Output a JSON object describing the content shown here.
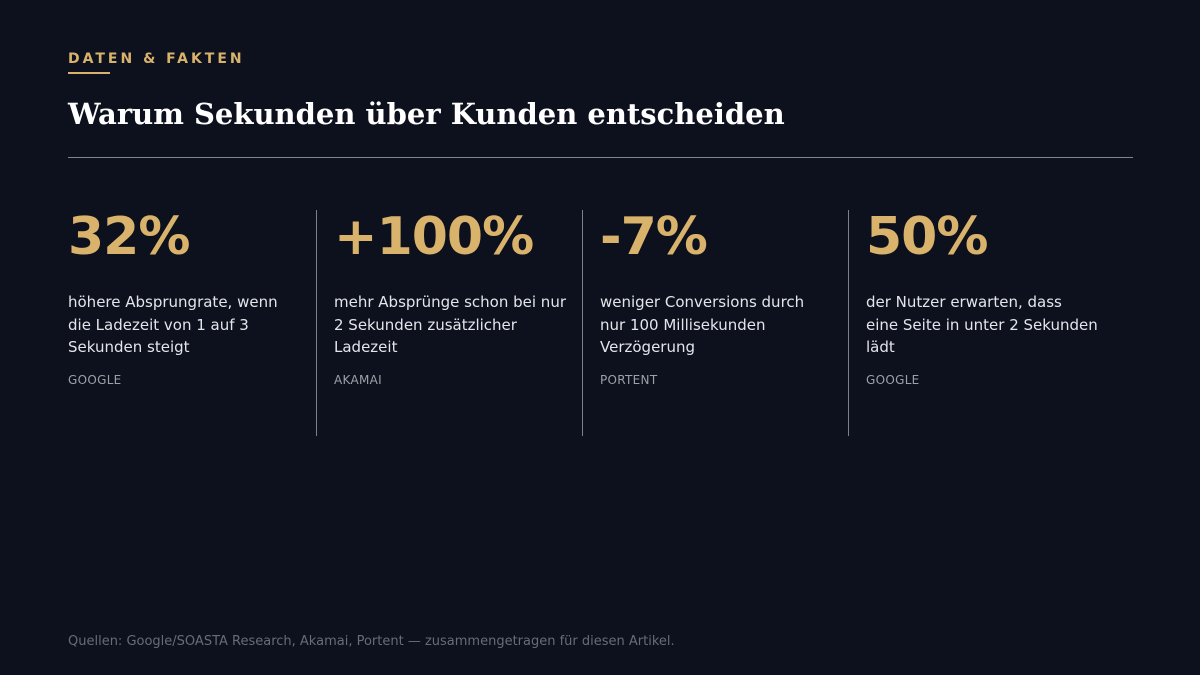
{
  "header": {
    "eyebrow": "DATEN & FAKTEN",
    "title": "Warum Sekunden über Kunden entscheiden"
  },
  "stats": [
    {
      "value": "32%",
      "description": "höhere Absprungrate, wenn die Ladezeit von 1 auf 3 Sekunden steigt",
      "source": "GOOGLE"
    },
    {
      "value": "+100%",
      "description": "mehr Absprünge schon bei nur 2 Sekunden zusätzlicher Ladezeit",
      "source": "AKAMAI"
    },
    {
      "value": "-7%",
      "description": "weniger Conversions durch nur 100 Millisekunden Verzögerung",
      "source": "PORTENT"
    },
    {
      "value": "50%",
      "description": "der Nutzer erwarten, dass eine Seite in unter 2 Sekunden lädt",
      "source": "GOOGLE"
    }
  ],
  "footer": {
    "sources_note": "Quellen: Google/SOASTA Research, Akamai, Portent — zusammengetragen für diesen Artikel."
  },
  "colors": {
    "background": "#0c111d",
    "accent_gold": "#d9b36c",
    "text_primary": "#ffffff",
    "text_muted": "#9ca0a8",
    "divider": "#80848c"
  }
}
